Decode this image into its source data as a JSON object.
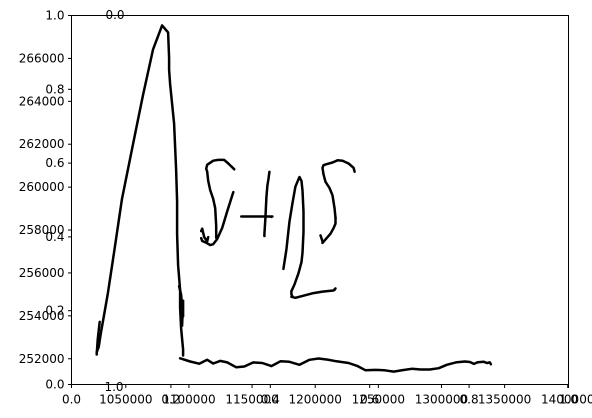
{
  "chart_data": {
    "type": "line",
    "title": "",
    "xlabel": "",
    "ylabel": "",
    "grid": false,
    "legend": "none",
    "stroke_color": "#000000",
    "overlay_axes": {
      "ylim": [
        0,
        1
      ],
      "y_ticks": [
        "0.0",
        "0.2",
        "0.4",
        "0.6",
        "0.8",
        "1.0"
      ],
      "xlim": [
        0,
        1
      ],
      "x_ticks": [
        "0.0",
        "0.2",
        "0.4",
        "0.6",
        "0.8",
        "1.0"
      ]
    },
    "top_axis_labels": [
      "0.0"
    ],
    "inset_labels": [
      "1.0"
    ],
    "main_axes": {
      "xlim": [
        1007000,
        1400600
      ],
      "x_ticks": [
        1050000,
        1100000,
        1150000,
        1200000,
        1250000,
        1300000,
        1350000,
        1400000
      ],
      "x_tick_labels": [
        "1050000",
        "1100000",
        "1150000",
        "1200000",
        "1250000",
        "1300000",
        "1350000",
        "1400000"
      ],
      "ylim": [
        250800,
        268000
      ],
      "y_ticks": [
        252000,
        254000,
        256000,
        258000,
        260000,
        262000,
        264000,
        266000
      ],
      "y_tick_labels": [
        "252000",
        "254000",
        "256000",
        "258000",
        "260000",
        "262000",
        "264000",
        "266000"
      ]
    },
    "series": [
      {
        "x": [
          1026980,
          1028580,
          1030200,
          1032600,
          1035800,
          1040560,
          1046930,
          1055690,
          1063630,
          1071570,
          1078720,
          1083490,
          1084280,
          1084280,
          1085080,
          1088260,
          1089840,
          1090640,
          1090640,
          1091430,
          1093020,
          1093020,
          1093820,
          1095400,
          1095400
        ],
        "y": [
          252310,
          252550,
          253180,
          253970,
          255060,
          256910,
          259430,
          262000,
          264290,
          266410,
          267540,
          267210,
          266020,
          265470,
          264810,
          262960,
          260830,
          259340,
          257810,
          256360,
          255220,
          254380,
          253420,
          252430,
          252150
        ]
      },
      {
        "x": [
          1092220,
          1093820,
          1095400,
          1095400,
          1094620
        ],
        "y": [
          255380,
          254990,
          253970,
          254700,
          253540
        ]
      },
      {
        "x": [
          1026980,
          1027780,
          1029370
        ],
        "y": [
          252200,
          252890,
          253720
        ]
      },
      {
        "x": [
          1109700,
          1110480,
          1112070,
          1114460,
          1115250
        ],
        "y": [
          257950,
          258060,
          257670,
          257470,
          257670
        ]
      },
      {
        "x": [
          1109700,
          1110480,
          1113660,
          1116840,
          1119220,
          1122400,
          1126370,
          1130340,
          1135110
        ],
        "y": [
          257620,
          257490,
          257410,
          257300,
          257340,
          257580,
          258100,
          258870,
          259770
        ]
      },
      {
        "x": [
          1121610,
          1121610,
          1120810,
          1119220,
          1116840,
          1115250,
          1114460,
          1113660,
          1114460,
          1119220,
          1123190,
          1127960,
          1131140,
          1135900
        ],
        "y": [
          257640,
          258180,
          259020,
          259450,
          259860,
          260290,
          260720,
          260860,
          261040,
          261230,
          261270,
          261270,
          261100,
          260830
        ]
      },
      {
        "x": [
          1141470,
          1152590,
          1166090,
          1165290
        ],
        "y": [
          258630,
          258630,
          258630,
          258610
        ]
      },
      {
        "x": [
          1159730,
          1159730,
          1160530,
          1161320,
          1162120,
          1162910,
          1163700,
          1163700
        ],
        "y": [
          257720,
          257810,
          258550,
          259520,
          260080,
          260360,
          260710,
          260710
        ]
      },
      {
        "x": [
          1174820,
          1177200,
          1179590,
          1181970,
          1184350,
          1186740,
          1187530,
          1189120,
          1189910,
          1190710,
          1190710,
          1189910,
          1189120,
          1186740,
          1183560,
          1181180,
          1181180,
          1181970
        ],
        "y": [
          256190,
          257090,
          258370,
          259230,
          260020,
          260370,
          260470,
          260280,
          259840,
          258860,
          257910,
          256940,
          256510,
          255990,
          255450,
          255150,
          255000,
          254910
        ]
      },
      {
        "x": [
          1181180,
          1184350,
          1190710,
          1198650,
          1205790,
          1214520,
          1216110,
          1215320
        ],
        "y": [
          254890,
          254840,
          254940,
          255060,
          255130,
          255180,
          255280,
          255210
        ]
      },
      {
        "x": [
          1204200,
          1205790,
          1205790,
          1212140,
          1214520,
          1216110,
          1216110
        ],
        "y": [
          257750,
          257470,
          257400,
          257830,
          258080,
          258300,
          258570
        ]
      },
      {
        "x": [
          1216110,
          1215320,
          1213730,
          1211350,
          1208170,
          1206580,
          1205790,
          1206580,
          1208960,
          1213730,
          1217700,
          1221670,
          1226430,
          1230400,
          1231200
        ],
        "y": [
          258570,
          259030,
          259620,
          259960,
          260250,
          260600,
          260900,
          261020,
          261070,
          261150,
          261250,
          261230,
          261100,
          260900,
          260720
        ]
      },
      {
        "x": [
          1093020,
          1100970,
          1108110,
          1114460,
          1119220,
          1124790,
          1130340,
          1137490,
          1143840,
          1150990,
          1158130,
          1165290,
          1172430,
          1179590,
          1187530,
          1195470,
          1202620,
          1209760,
          1216900,
          1226430,
          1233570,
          1239920,
          1247860,
          1255010,
          1262150,
          1269300,
          1276440,
          1283590,
          1290740,
          1297880,
          1304230,
          1311380,
          1318520,
          1322490,
          1325670,
          1328850,
          1333610,
          1336000,
          1338390,
          1339180
        ],
        "y": [
          252020,
          251870,
          251770,
          251950,
          251780,
          251900,
          251830,
          251600,
          251640,
          251830,
          251800,
          251660,
          251880,
          251860,
          251720,
          251950,
          252010,
          251960,
          251880,
          251800,
          251660,
          251460,
          251480,
          251460,
          251400,
          251470,
          251530,
          251500,
          251500,
          251560,
          251720,
          251830,
          251870,
          251850,
          251760,
          251840,
          251860,
          251800,
          251830,
          251740
        ]
      }
    ]
  }
}
